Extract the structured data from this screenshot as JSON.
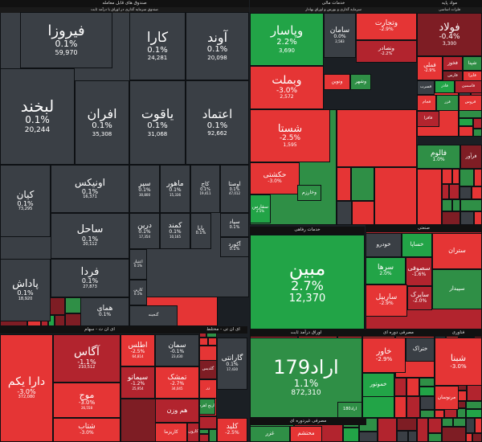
{
  "colors": {
    "up_strong": "#22a447",
    "up": "#2f8f46",
    "down_strong": "#e53535",
    "down": "#b2242e",
    "down_dark": "#7e1d24",
    "neutral": "#3a3f45"
  },
  "chart_data": {
    "type": "treemap",
    "sectors": [
      {
        "name": "صندوق های قابل معامله",
        "subtitle": "صندوق سرمایه گذاری در اوراق با درآمد ثابت",
        "items": [
          {
            "name": "فیروزا",
            "change": "0.1%",
            "value": "59,970"
          },
          {
            "name": "کارا",
            "change": "0.1%",
            "value": "24,281"
          },
          {
            "name": "آوند",
            "change": "0.1%",
            "value": "20,098"
          },
          {
            "name": "لبخند",
            "change": "0.1%",
            "value": "20,244"
          },
          {
            "name": "افران",
            "change": "0.1%",
            "value": "35,308"
          },
          {
            "name": "یاقوت",
            "change": "0.1%",
            "value": "31,068"
          },
          {
            "name": "اعتماد",
            "change": "0.1%",
            "value": "92,662"
          },
          {
            "name": "اونیکس",
            "change": "0.1%",
            "value": "16,371"
          },
          {
            "name": "سپر",
            "change": "0.1%",
            "value": "30,800"
          },
          {
            "name": "ماهور",
            "change": "0.1%",
            "value": "15,336"
          },
          {
            "name": "کاج",
            "change": "0.1%",
            "value": "19,411"
          },
          {
            "name": "اوصتا",
            "change": "0.1%",
            "value": "47,012"
          },
          {
            "name": "کیان",
            "change": "0.1%",
            "value": "73,295"
          },
          {
            "name": "ساحل",
            "change": "0.1%",
            "value": "20,112"
          },
          {
            "name": "درین",
            "change": "0.1%",
            "value": "17,354"
          },
          {
            "name": "کمند",
            "change": "0.1%",
            "value": "10,165"
          },
          {
            "name": "پایا",
            "change": "0.1%",
            "value": ""
          },
          {
            "name": "سپاد",
            "change": "0.1%",
            "value": ""
          },
          {
            "name": "آکورد",
            "change": "0.1%",
            "value": ""
          },
          {
            "name": "فردا",
            "change": "0.1%",
            "value": "27,873"
          },
          {
            "name": "اعتبار",
            "change": "0.1%",
            "value": ""
          },
          {
            "name": "کارین",
            "change": "0.1%",
            "value": ""
          },
          {
            "name": "پاداش",
            "change": "0.1%",
            "value": "18,920"
          },
          {
            "name": "ارکیده",
            "change": "0.1%",
            "value": "12,765"
          },
          {
            "name": "همای",
            "change": "0.1%",
            "value": ""
          },
          {
            "name": "گنجینه",
            "change": "",
            "value": ""
          }
        ]
      },
      {
        "name": "خدمات مالی",
        "subtitle": "سرمایه گذاری و بورس و اوراق بهادار",
        "items": [
          {
            "name": "وپاسار",
            "change": "2.2%",
            "value": "3,690"
          },
          {
            "name": "سامان",
            "change": "0.0%",
            "value": "2,583"
          },
          {
            "name": "وتجارت",
            "change": "-2.9%",
            "value": ""
          },
          {
            "name": "ونصادر",
            "change": "-2.2%",
            "value": ""
          },
          {
            "name": "وبملت",
            "change": "-3.0%",
            "value": "2,572"
          },
          {
            "name": "ونوین",
            "change": "",
            "value": ""
          },
          {
            "name": "وشهر",
            "change": "",
            "value": ""
          }
        ]
      },
      {
        "name": "خدمات کالایی",
        "items": [
          {
            "name": "شستا",
            "change": "-2.5%",
            "value": "1,595"
          },
          {
            "name": "حکشتی",
            "change": "-3.0%",
            "value": ""
          },
          {
            "name": "سفارس",
            "change": "2.5%",
            "value": ""
          },
          {
            "name": "وخارزم",
            "change": "",
            "value": ""
          }
        ]
      },
      {
        "name": "مواد پایه",
        "subtitle": "فلزات اساسی",
        "items": [
          {
            "name": "فولاد",
            "change": "-0.4%",
            "value": "3,300"
          },
          {
            "name": "فملی",
            "change": "-2.9%",
            "value": ""
          },
          {
            "name": "فخوز",
            "change": "",
            "value": ""
          },
          {
            "name": "شپنا",
            "change": "",
            "value": ""
          },
          {
            "name": "فارس",
            "change": "",
            "value": ""
          },
          {
            "name": "فایرا",
            "change": "",
            "value": ""
          },
          {
            "name": "فسرب",
            "change": "",
            "value": ""
          },
          {
            "name": "فاذر",
            "change": "",
            "value": ""
          },
          {
            "name": "فاسمین",
            "change": "",
            "value": ""
          },
          {
            "name": "فجام",
            "change": "",
            "value": ""
          },
          {
            "name": "فزر",
            "change": "",
            "value": ""
          },
          {
            "name": "فروس",
            "change": "",
            "value": ""
          },
          {
            "name": "فافزا",
            "change": "",
            "value": ""
          }
        ]
      },
      {
        "name": "تولید کالای اساسی",
        "items": [
          {
            "name": "فالوم",
            "change": "1.0%",
            "value": ""
          },
          {
            "name": "فرآور",
            "change": "",
            "value": ""
          }
        ]
      },
      {
        "name": "صنعتی",
        "items": [
          {
            "name": "خودرو",
            "change": "",
            "value": ""
          },
          {
            "name": "خساپا",
            "change": "",
            "value": ""
          },
          {
            "name": "سرها",
            "change": "2.0%",
            "value": ""
          },
          {
            "name": "ستران",
            "change": "",
            "value": ""
          },
          {
            "name": "سصوفی",
            "change": "-1.6%",
            "value": ""
          },
          {
            "name": "ساربیل",
            "change": "-2.9%",
            "value": ""
          },
          {
            "name": "سایرک",
            "change": "-2.0%",
            "value": ""
          },
          {
            "name": "سپیدار",
            "change": "",
            "value": ""
          }
        ]
      },
      {
        "name": "خدمات رفاهی",
        "items": [
          {
            "name": "مبین",
            "change": "2.7%",
            "value": "12,370"
          }
        ]
      },
      {
        "name": "اوراق درآمد ثابت",
        "items": [
          {
            "name": "اراد179",
            "change": "1.1%",
            "value": "872,310"
          },
          {
            "name": "اراد180",
            "change": "",
            "value": ""
          }
        ]
      },
      {
        "name": "مصرفی دوره ای",
        "items": [
          {
            "name": "خاور",
            "change": "-2.9%",
            "value": ""
          },
          {
            "name": "ختراک",
            "change": "",
            "value": ""
          },
          {
            "name": "خموتور",
            "change": "",
            "value": ""
          }
        ]
      },
      {
        "name": "فناوری",
        "items": [
          {
            "name": "شبنا",
            "change": "-3.0%",
            "value": ""
          },
          {
            "name": "مرنوسان",
            "change": "",
            "value": ""
          }
        ]
      },
      {
        "name": "ای ان ت - سهام",
        "items": [
          {
            "name": "دارا یکم",
            "change": "-3.0%",
            "value": "372,080"
          },
          {
            "name": "آگاس",
            "change": "-1.1%",
            "value": "210,512"
          },
          {
            "name": "اطلس",
            "change": "-2.5%",
            "value": "64,814"
          },
          {
            "name": "سمان",
            "change": "-0.1%",
            "value": "23,430"
          },
          {
            "name": "سیماتو",
            "change": "-1.2%",
            "value": "25,954"
          },
          {
            "name": "تمشک",
            "change": "-2.7%",
            "value": "34,045"
          },
          {
            "name": "موج",
            "change": "-3.0%",
            "value": "26,558"
          },
          {
            "name": "هم وزن",
            "change": "",
            "value": ""
          },
          {
            "name": "شتاب",
            "change": "-3.0%",
            "value": ""
          },
          {
            "name": "نارنج اهرم",
            "change": "",
            "value": ""
          },
          {
            "name": "کاریزما",
            "change": "",
            "value": ""
          },
          {
            "name": "کارون",
            "change": "",
            "value": ""
          }
        ]
      },
      {
        "name": "طلا",
        "items": [
          {
            "name": "گلدیس",
            "change": "",
            "value": ""
          },
          {
            "name": "زر",
            "change": "",
            "value": ""
          }
        ]
      },
      {
        "name": "ای ان تی - مختلط",
        "items": [
          {
            "name": "گارانتی",
            "change": "0.1%",
            "value": "17,430"
          },
          {
            "name": "کلید",
            "change": "-2.5%",
            "value": ""
          }
        ]
      },
      {
        "name": "مصرفی غیردوره ای",
        "items": [
          {
            "name": "غزر",
            "change": "",
            "value": ""
          },
          {
            "name": "محتشم",
            "change": "",
            "value": ""
          }
        ]
      },
      {
        "name": "آب",
        "items": []
      }
    ]
  }
}
